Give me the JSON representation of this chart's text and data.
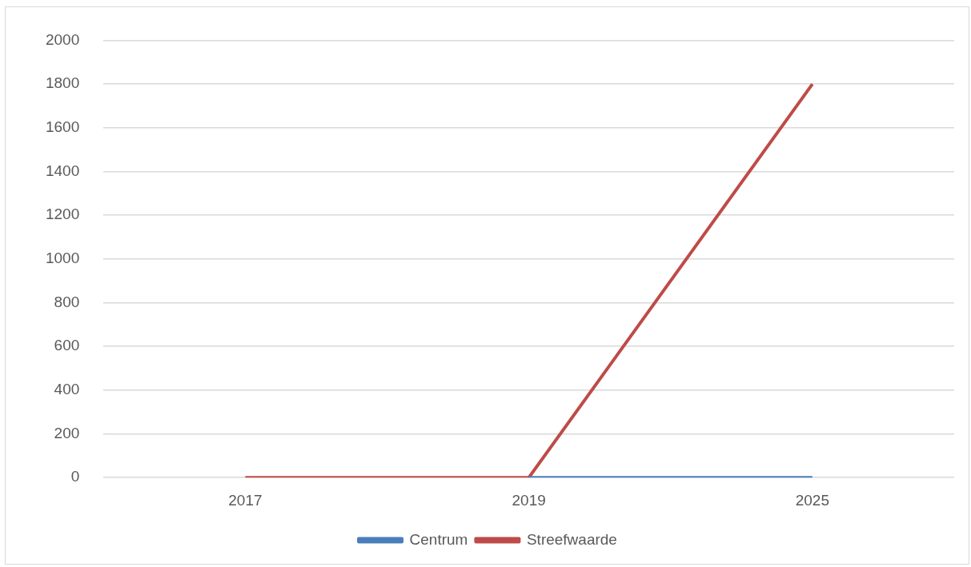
{
  "chart_data": {
    "type": "line",
    "categories": [
      "2017",
      "2019",
      "2025"
    ],
    "series": [
      {
        "name": "Centrum",
        "color": "#4a7ebb",
        "values": [
          null,
          0,
          0
        ]
      },
      {
        "name": "Streefwaarde",
        "color": "#be4b48",
        "values": [
          0,
          0,
          1800
        ]
      }
    ],
    "ylim": [
      0,
      2000
    ],
    "yticks": [
      0,
      200,
      400,
      600,
      800,
      1000,
      1200,
      1400,
      1600,
      1800,
      2000
    ],
    "grid": "y",
    "legend": "bottom",
    "marker": "none",
    "line_style": "solid"
  }
}
